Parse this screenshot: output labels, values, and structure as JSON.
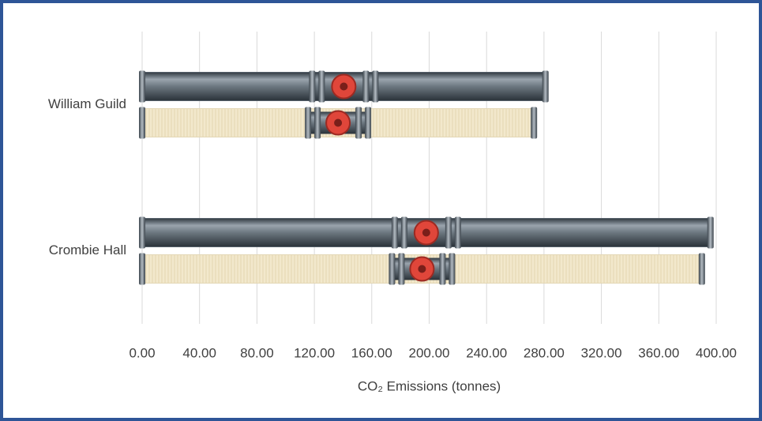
{
  "chart_data": {
    "type": "bar",
    "orientation": "horizontal",
    "categories": [
      "William Guild",
      "Crombie Hall"
    ],
    "series": [
      {
        "color": "#56616b",
        "values": [
          281,
          396
        ]
      },
      {
        "color": "#f2e8cc",
        "values": [
          273,
          390
        ]
      }
    ],
    "xlabel": "CO₂ Emissions (tonnes)",
    "xlim": [
      0,
      400
    ],
    "xticks": [
      {
        "value": 0,
        "label": "0.00"
      },
      {
        "value": 40,
        "label": "40.00"
      },
      {
        "value": 80,
        "label": "80.00"
      },
      {
        "value": 120,
        "label": "120.00"
      },
      {
        "value": 160,
        "label": "160.00"
      },
      {
        "value": 200,
        "label": "200.00"
      },
      {
        "value": 240,
        "label": "240.00"
      },
      {
        "value": 280,
        "label": "280.00"
      },
      {
        "value": 320,
        "label": "320.00"
      },
      {
        "value": 360,
        "label": "360.00"
      },
      {
        "value": 400,
        "label": "400.00"
      }
    ],
    "grid": true
  }
}
